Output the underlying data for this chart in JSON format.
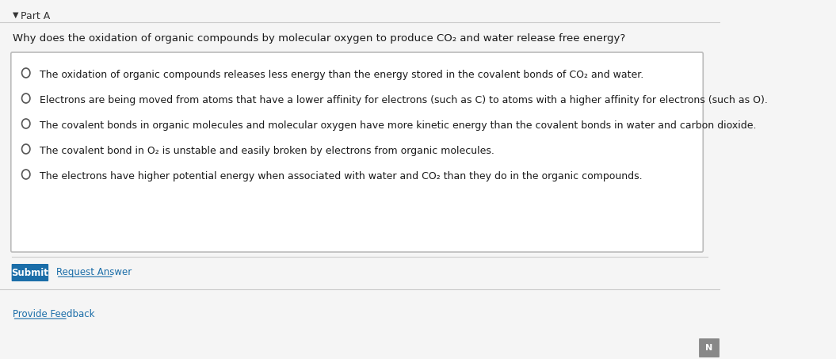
{
  "background_color": "#e8e8e8",
  "content_bg": "#f5f5f5",
  "part_label": "Part A",
  "question": "Why does the oxidation of organic compounds by molecular oxygen to produce CO₂ and water release free energy?",
  "answer_box_bg": "#ffffff",
  "answer_box_border": "#bbbbbb",
  "options": [
    "The oxidation of organic compounds releases less energy than the energy stored in the covalent bonds of CO₂ and water.",
    "Electrons are being moved from atoms that have a lower affinity for electrons (such as C) to atoms with a higher affinity for electrons (such as O).",
    "The covalent bonds in organic molecules and molecular oxygen have more kinetic energy than the covalent bonds in water and carbon dioxide.",
    "The covalent bond in O₂ is unstable and easily broken by electrons from organic molecules.",
    "The electrons have higher potential energy when associated with water and CO₂ than they do in the organic compounds."
  ],
  "submit_btn_color": "#1a6da8",
  "submit_btn_text": "Submit",
  "submit_btn_text_color": "#ffffff",
  "request_answer_text": "Request Answer",
  "request_answer_color": "#1a6da8",
  "provide_feedback_text": "Provide Feedback",
  "provide_feedback_color": "#1a6da8",
  "next_text": "N",
  "next_bg": "#888888",
  "part_label_color": "#333333",
  "question_color": "#1a1a1a",
  "option_text_color": "#1a1a1a",
  "radio_color": "#555555",
  "font_size_part": 9,
  "font_size_question": 9.5,
  "font_size_options": 9,
  "font_size_buttons": 8.5
}
